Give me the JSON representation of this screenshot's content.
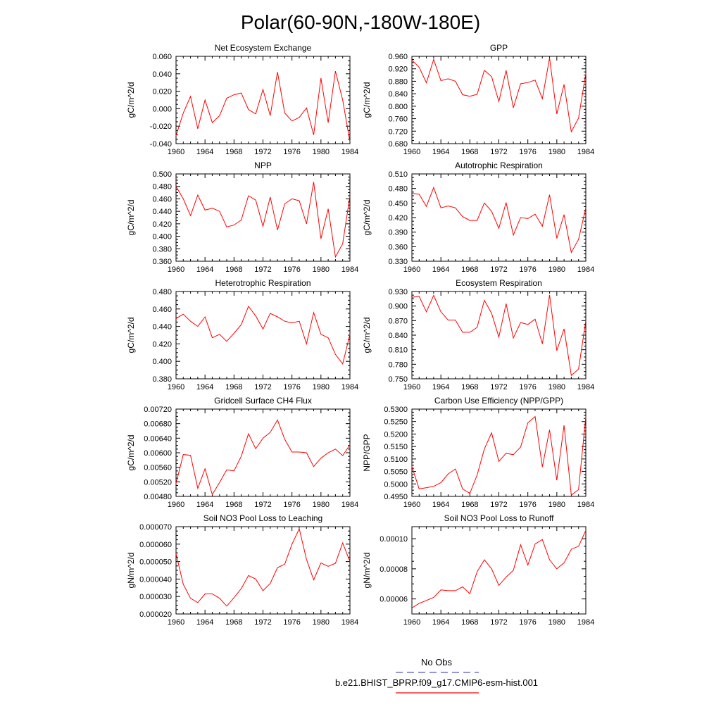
{
  "figure": {
    "title": "Polar(60-90N,-180W-180E)",
    "legend": [
      {
        "label": "No Obs",
        "color": "#5555cc",
        "dash": true
      },
      {
        "label": "b.e21.BHIST_BPRP.f09_g17.CMIP6-esm-hist.001",
        "color": "#ff0000",
        "dash": false
      }
    ]
  },
  "chart_data": [
    {
      "type": "line",
      "title": "Net Ecosystem Exchange",
      "ylabel": "gC/m^2/d",
      "xlim": [
        1960,
        1984
      ],
      "ylim": [
        -0.04,
        0.06
      ],
      "xticks": [
        1960,
        1964,
        1968,
        1972,
        1976,
        1980,
        1984
      ],
      "xtick_labels": [
        "1960",
        "1964",
        "1968",
        "1972",
        "1976",
        "1980",
        "1984"
      ],
      "yticks": [
        -0.04,
        -0.02,
        0.0,
        0.02,
        0.04,
        0.06
      ],
      "ytick_labels": [
        "-0.040",
        "-0.020",
        "0.000",
        "0.020",
        "0.040",
        "0.060"
      ],
      "x": [
        1960,
        1961,
        1962,
        1963,
        1964,
        1965,
        1966,
        1967,
        1968,
        1969,
        1970,
        1971,
        1972,
        1973,
        1974,
        1975,
        1976,
        1977,
        1978,
        1979,
        1980,
        1981,
        1982,
        1983,
        1984
      ],
      "series": [
        {
          "color": "#ff0000",
          "values": [
            -0.031,
            -0.005,
            0.014,
            -0.023,
            0.01,
            -0.016,
            -0.008,
            0.012,
            0.016,
            0.018,
            -0.001,
            -0.006,
            0.022,
            -0.008,
            0.042,
            -0.005,
            -0.014,
            -0.01,
            0.001,
            -0.03,
            0.035,
            -0.016,
            0.043,
            0.01,
            -0.038
          ]
        }
      ]
    },
    {
      "type": "line",
      "title": "GPP",
      "ylabel": "gC/m^2/d",
      "xlim": [
        1960,
        1984
      ],
      "ylim": [
        0.68,
        0.96
      ],
      "xticks": [
        1960,
        1964,
        1968,
        1972,
        1976,
        1980,
        1984
      ],
      "xtick_labels": [
        "1960",
        "1964",
        "1968",
        "1972",
        "1976",
        "1980",
        "1984"
      ],
      "yticks": [
        0.68,
        0.72,
        0.76,
        0.8,
        0.84,
        0.88,
        0.92,
        0.96
      ],
      "ytick_labels": [
        "0.680",
        "0.720",
        "0.760",
        "0.800",
        "0.840",
        "0.880",
        "0.920",
        "0.960"
      ],
      "x": [
        1960,
        1961,
        1962,
        1963,
        1964,
        1965,
        1966,
        1967,
        1968,
        1969,
        1970,
        1971,
        1972,
        1973,
        1974,
        1975,
        1976,
        1977,
        1978,
        1979,
        1980,
        1981,
        1982,
        1983,
        1984
      ],
      "series": [
        {
          "color": "#ff0000",
          "values": [
            0.948,
            0.925,
            0.875,
            0.95,
            0.882,
            0.888,
            0.88,
            0.837,
            0.832,
            0.838,
            0.915,
            0.895,
            0.815,
            0.915,
            0.795,
            0.872,
            0.876,
            0.884,
            0.824,
            0.955,
            0.775,
            0.87,
            0.718,
            0.762,
            0.905
          ]
        }
      ]
    },
    {
      "type": "line",
      "title": "NPP",
      "ylabel": "gC/m^2/d",
      "xlim": [
        1960,
        1984
      ],
      "ylim": [
        0.36,
        0.5
      ],
      "xticks": [
        1960,
        1964,
        1968,
        1972,
        1976,
        1980,
        1984
      ],
      "xtick_labels": [
        "1960",
        "1964",
        "1968",
        "1972",
        "1976",
        "1980",
        "1984"
      ],
      "yticks": [
        0.36,
        0.38,
        0.4,
        0.42,
        0.44,
        0.46,
        0.48,
        0.5
      ],
      "ytick_labels": [
        "0.360",
        "0.380",
        "0.400",
        "0.420",
        "0.440",
        "0.460",
        "0.480",
        "0.500"
      ],
      "x": [
        1960,
        1961,
        1962,
        1963,
        1964,
        1965,
        1966,
        1967,
        1968,
        1969,
        1970,
        1971,
        1972,
        1973,
        1974,
        1975,
        1976,
        1977,
        1978,
        1979,
        1980,
        1981,
        1982,
        1983,
        1984
      ],
      "series": [
        {
          "color": "#ff0000",
          "values": [
            0.48,
            0.46,
            0.433,
            0.466,
            0.442,
            0.445,
            0.44,
            0.415,
            0.418,
            0.426,
            0.465,
            0.458,
            0.416,
            0.463,
            0.41,
            0.452,
            0.46,
            0.457,
            0.42,
            0.487,
            0.396,
            0.444,
            0.367,
            0.388,
            0.465
          ]
        }
      ]
    },
    {
      "type": "line",
      "title": "Autotrophic Respiration",
      "ylabel": "gC/m^2/d",
      "xlim": [
        1960,
        1984
      ],
      "ylim": [
        0.33,
        0.51
      ],
      "xticks": [
        1960,
        1964,
        1968,
        1972,
        1976,
        1980,
        1984
      ],
      "xtick_labels": [
        "1960",
        "1964",
        "1968",
        "1972",
        "1976",
        "1980",
        "1984"
      ],
      "yticks": [
        0.33,
        0.36,
        0.39,
        0.42,
        0.45,
        0.48,
        0.51
      ],
      "ytick_labels": [
        "0.330",
        "0.360",
        "0.390",
        "0.420",
        "0.450",
        "0.480",
        "0.510"
      ],
      "x": [
        1960,
        1961,
        1962,
        1963,
        1964,
        1965,
        1966,
        1967,
        1968,
        1969,
        1970,
        1971,
        1972,
        1973,
        1974,
        1975,
        1976,
        1977,
        1978,
        1979,
        1980,
        1981,
        1982,
        1983,
        1984
      ],
      "series": [
        {
          "color": "#ff0000",
          "values": [
            0.47,
            0.468,
            0.443,
            0.482,
            0.44,
            0.444,
            0.44,
            0.422,
            0.414,
            0.414,
            0.45,
            0.433,
            0.398,
            0.451,
            0.384,
            0.42,
            0.418,
            0.427,
            0.402,
            0.467,
            0.377,
            0.426,
            0.348,
            0.375,
            0.44
          ]
        }
      ]
    },
    {
      "type": "line",
      "title": "Heterotrophic Respiration",
      "ylabel": "gC/m^2/d",
      "xlim": [
        1960,
        1984
      ],
      "ylim": [
        0.38,
        0.48
      ],
      "xticks": [
        1960,
        1964,
        1968,
        1972,
        1976,
        1980,
        1984
      ],
      "xtick_labels": [
        "1960",
        "1964",
        "1968",
        "1972",
        "1976",
        "1980",
        "1984"
      ],
      "yticks": [
        0.38,
        0.4,
        0.42,
        0.44,
        0.46,
        0.48
      ],
      "ytick_labels": [
        "0.380",
        "0.400",
        "0.420",
        "0.440",
        "0.460",
        "0.480"
      ],
      "x": [
        1960,
        1961,
        1962,
        1963,
        1964,
        1965,
        1966,
        1967,
        1968,
        1969,
        1970,
        1971,
        1972,
        1973,
        1974,
        1975,
        1976,
        1977,
        1978,
        1979,
        1980,
        1981,
        1982,
        1983,
        1984
      ],
      "series": [
        {
          "color": "#ff0000",
          "values": [
            0.449,
            0.454,
            0.446,
            0.44,
            0.451,
            0.427,
            0.431,
            0.423,
            0.432,
            0.442,
            0.463,
            0.452,
            0.437,
            0.455,
            0.451,
            0.446,
            0.444,
            0.446,
            0.42,
            0.456,
            0.431,
            0.427,
            0.408,
            0.397,
            0.431
          ]
        }
      ]
    },
    {
      "type": "line",
      "title": "Ecosystem Respiration",
      "ylabel": "gC/m^2/d",
      "xlim": [
        1960,
        1984
      ],
      "ylim": [
        0.75,
        0.93
      ],
      "xticks": [
        1960,
        1964,
        1968,
        1972,
        1976,
        1980,
        1984
      ],
      "xtick_labels": [
        "1960",
        "1964",
        "1968",
        "1972",
        "1976",
        "1980",
        "1984"
      ],
      "yticks": [
        0.75,
        0.78,
        0.81,
        0.84,
        0.87,
        0.9,
        0.93
      ],
      "ytick_labels": [
        "0.750",
        "0.780",
        "0.810",
        "0.840",
        "0.870",
        "0.900",
        "0.930"
      ],
      "x": [
        1960,
        1961,
        1962,
        1963,
        1964,
        1965,
        1966,
        1967,
        1968,
        1969,
        1970,
        1971,
        1972,
        1973,
        1974,
        1975,
        1976,
        1977,
        1978,
        1979,
        1980,
        1981,
        1982,
        1983,
        1984
      ],
      "series": [
        {
          "color": "#ff0000",
          "values": [
            0.918,
            0.92,
            0.888,
            0.922,
            0.888,
            0.871,
            0.871,
            0.846,
            0.846,
            0.856,
            0.912,
            0.885,
            0.836,
            0.905,
            0.834,
            0.866,
            0.862,
            0.873,
            0.822,
            0.923,
            0.808,
            0.853,
            0.757,
            0.77,
            0.87
          ]
        }
      ]
    },
    {
      "type": "line",
      "title": "Gridcell Surface CH4 Flux",
      "ylabel": "gC/m^2/d",
      "xlim": [
        1960,
        1984
      ],
      "ylim": [
        0.0048,
        0.0072
      ],
      "xticks": [
        1960,
        1964,
        1968,
        1972,
        1976,
        1980,
        1984
      ],
      "xtick_labels": [
        "1960",
        "1964",
        "1968",
        "1972",
        "1976",
        "1980",
        "1984"
      ],
      "yticks": [
        0.0048,
        0.0052,
        0.0056,
        0.006,
        0.0064,
        0.0068,
        0.0072
      ],
      "ytick_labels": [
        "0.00480",
        "0.00520",
        "0.00560",
        "0.00600",
        "0.00640",
        "0.00680",
        "0.00720"
      ],
      "x": [
        1960,
        1961,
        1962,
        1963,
        1964,
        1965,
        1966,
        1967,
        1968,
        1969,
        1970,
        1971,
        1972,
        1973,
        1974,
        1975,
        1976,
        1977,
        1978,
        1979,
        1980,
        1981,
        1982,
        1983,
        1984
      ],
      "series": [
        {
          "color": "#ff0000",
          "values": [
            0.00515,
            0.00595,
            0.00593,
            0.00502,
            0.00556,
            0.00485,
            0.00518,
            0.00553,
            0.0055,
            0.0059,
            0.00652,
            0.00611,
            0.0064,
            0.00656,
            0.0069,
            0.00637,
            0.00602,
            0.00602,
            0.006,
            0.00562,
            0.00585,
            0.006,
            0.0061,
            0.00592,
            0.00622
          ]
        }
      ]
    },
    {
      "type": "line",
      "title": "Carbon Use Efficiency (NPP/GPP)",
      "ylabel": "NPP/GPP",
      "xlim": [
        1960,
        1984
      ],
      "ylim": [
        0.495,
        0.53
      ],
      "xticks": [
        1960,
        1964,
        1968,
        1972,
        1976,
        1980,
        1984
      ],
      "xtick_labels": [
        "1960",
        "1964",
        "1968",
        "1972",
        "1976",
        "1980",
        "1984"
      ],
      "yticks": [
        0.495,
        0.5,
        0.505,
        0.51,
        0.515,
        0.52,
        0.525,
        0.53
      ],
      "ytick_labels": [
        "0.4950",
        "0.5000",
        "0.5050",
        "0.5100",
        "0.5150",
        "0.5200",
        "0.5250",
        "0.5300"
      ],
      "x": [
        1960,
        1961,
        1962,
        1963,
        1964,
        1965,
        1966,
        1967,
        1968,
        1969,
        1970,
        1971,
        1972,
        1973,
        1974,
        1975,
        1976,
        1977,
        1978,
        1979,
        1980,
        1981,
        1982,
        1983,
        1984
      ],
      "series": [
        {
          "color": "#ff0000",
          "values": [
            0.507,
            0.498,
            0.4985,
            0.499,
            0.5005,
            0.504,
            0.506,
            0.498,
            0.4962,
            0.5035,
            0.514,
            0.5205,
            0.509,
            0.5123,
            0.5117,
            0.5148,
            0.5245,
            0.527,
            0.5068,
            0.5217,
            0.5015,
            0.5235,
            0.4955,
            0.4977,
            0.527
          ]
        }
      ]
    },
    {
      "type": "line",
      "title": "Soil NO3 Pool Loss to Leaching",
      "ylabel": "gN/m^2/d",
      "xlim": [
        1960,
        1984
      ],
      "ylim": [
        2e-05,
        7e-05
      ],
      "xticks": [
        1960,
        1964,
        1968,
        1972,
        1976,
        1980,
        1984
      ],
      "xtick_labels": [
        "1960",
        "1964",
        "1968",
        "1972",
        "1976",
        "1980",
        "1984"
      ],
      "yticks": [
        2e-05,
        3e-05,
        4e-05,
        5e-05,
        6e-05,
        7e-05
      ],
      "ytick_labels": [
        "0.000020",
        "0.000030",
        "0.000040",
        "0.000050",
        "0.000060",
        "0.000070"
      ],
      "x": [
        1960,
        1961,
        1962,
        1963,
        1964,
        1965,
        1966,
        1967,
        1968,
        1969,
        1970,
        1971,
        1972,
        1973,
        1974,
        1975,
        1976,
        1977,
        1978,
        1979,
        1980,
        1981,
        1982,
        1983,
        1984
      ],
      "series": [
        {
          "color": "#ff0000",
          "values": [
            5.45e-05,
            3.7e-05,
            2.9e-05,
            2.65e-05,
            3.15e-05,
            3.15e-05,
            2.9e-05,
            2.45e-05,
            2.93e-05,
            3.45e-05,
            4.2e-05,
            4e-05,
            3.33e-05,
            3.75e-05,
            4.65e-05,
            4.85e-05,
            6e-05,
            6.88e-05,
            5.13e-05,
            3.95e-05,
            4.92e-05,
            4.73e-05,
            4.9e-05,
            6.07e-05,
            5e-05
          ]
        }
      ]
    },
    {
      "type": "line",
      "title": "Soil NO3 Pool Loss to Runoff",
      "ylabel": "gN/m^2/d",
      "xlim": [
        1960,
        1984
      ],
      "ylim": [
        5e-05,
        0.000108
      ],
      "xticks": [
        1960,
        1964,
        1968,
        1972,
        1976,
        1980,
        1984
      ],
      "xtick_labels": [
        "1960",
        "1964",
        "1968",
        "1972",
        "1976",
        "1980",
        "1984"
      ],
      "yticks": [
        6e-05,
        8e-05,
        0.0001
      ],
      "ytick_labels": [
        "0.00006",
        "0.00008",
        "0.00010"
      ],
      "x": [
        1960,
        1961,
        1962,
        1963,
        1964,
        1965,
        1966,
        1967,
        1968,
        1969,
        1970,
        1971,
        1972,
        1973,
        1974,
        1975,
        1976,
        1977,
        1978,
        1979,
        1980,
        1981,
        1982,
        1983,
        1984
      ],
      "series": [
        {
          "color": "#ff0000",
          "values": [
            5.4e-05,
            5.7e-05,
            5.9e-05,
            6.1e-05,
            6.6e-05,
            6.55e-05,
            6.55e-05,
            6.8e-05,
            6.35e-05,
            7.8e-05,
            8.6e-05,
            8e-05,
            6.9e-05,
            7.45e-05,
            7.9e-05,
            9.6e-05,
            8.25e-05,
            9.65e-05,
            9.95e-05,
            8.6e-05,
            8e-05,
            8.4e-05,
            9.3e-05,
            9.5e-05,
            0.0001055
          ]
        }
      ]
    }
  ]
}
